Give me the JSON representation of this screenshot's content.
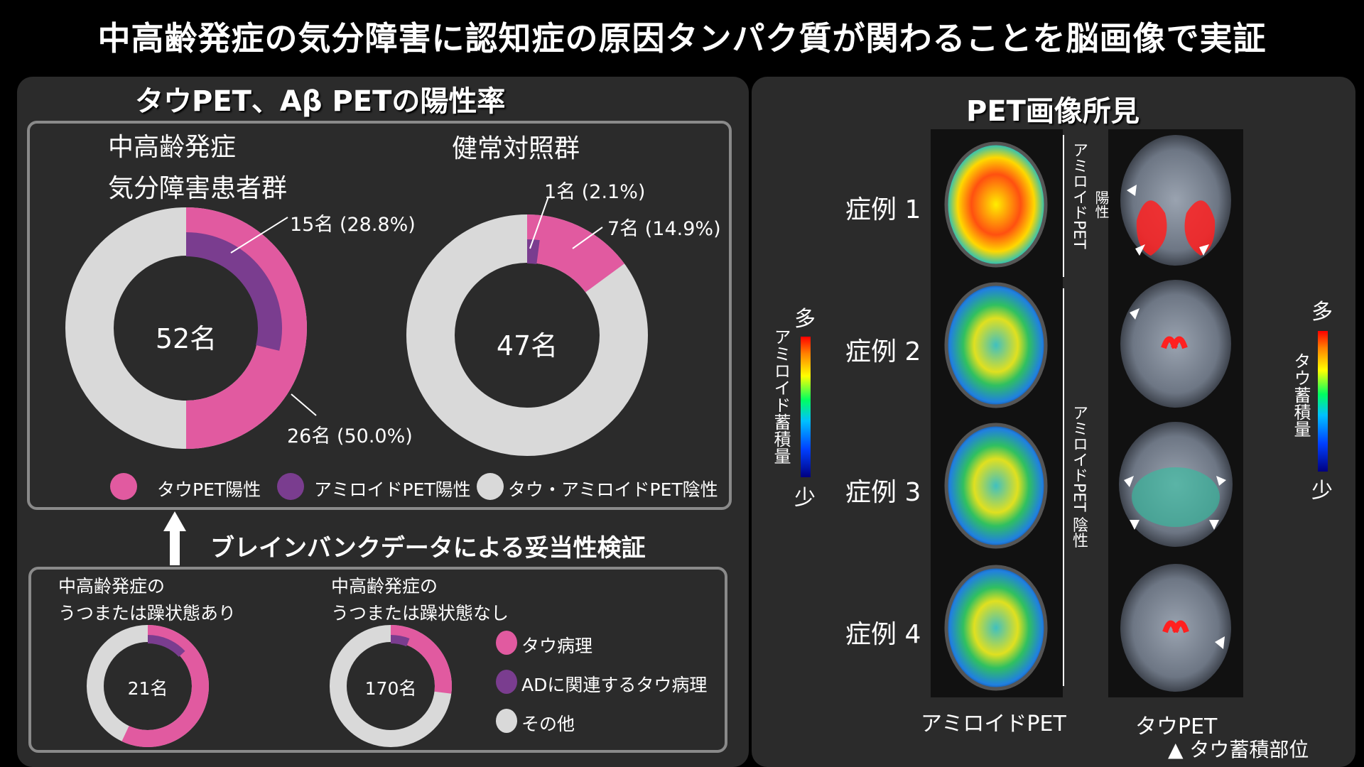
{
  "title": "中高齢発症の気分障害に認知症の原因タンパク質が関わることを脳画像で実証",
  "left_panel": {
    "title": "タウPET、Aβ PETの陽性率",
    "group1_label_line1": "中高齢発症",
    "group1_label_line2": "気分障害患者群",
    "group2_label": "健常対照群",
    "legend": [
      {
        "label": "タウPET陽性",
        "color": "#e15aa0"
      },
      {
        "label": "アミロイドPET陽性",
        "color": "#7a3d8f"
      },
      {
        "label": "タウ・アミロイドPET陰性",
        "color": "#d9d9d9"
      }
    ],
    "validation_label": "ブレインバンクデータによる妥当性検証",
    "bottom_group1_line1": "中高齢発症の",
    "bottom_group1_line2": "うつまたは躁状態あり",
    "bottom_group2_line1": "中高齢発症の",
    "bottom_group2_line2": "うつまたは躁状態なし",
    "bottom_legend": [
      {
        "label": "タウ病理",
        "color": "#e15aa0"
      },
      {
        "label": "ADに関連するタウ病理",
        "color": "#7a3d8f"
      },
      {
        "label": "その他",
        "color": "#d9d9d9"
      }
    ]
  },
  "right_panel": {
    "title": "PET画像所見",
    "cases": [
      "症例 1",
      "症例 2",
      "症例 3",
      "症例 4"
    ],
    "amyloid_positive_label": "アミロイドPET",
    "amyloid_positive_label2": "陽性",
    "amyloid_negative_label": "アミロイドPET 陰性",
    "amyloid_scale_label": "アミロイド蓄積量",
    "tau_scale_label": "タウ蓄積量",
    "scale_high": "多",
    "scale_low": "少",
    "col_amyloid": "アミロイドPET",
    "col_tau": "タウPET",
    "tau_site_note": "▲ タウ蓄積部位"
  },
  "chart_data": [
    {
      "type": "pie",
      "title": "中高齢発症 気分障害患者群",
      "center_label": "52名",
      "series": [
        {
          "name": "タウPET陽性",
          "values": [
            26
          ],
          "label": "26名 (50.0%)",
          "fraction": 0.5
        },
        {
          "name": "アミロイドPET陽性",
          "values": [
            15
          ],
          "label": "15名 (28.8%)",
          "fraction": 0.288
        }
      ],
      "total": 52
    },
    {
      "type": "pie",
      "title": "健常対照群",
      "center_label": "47名",
      "series": [
        {
          "name": "タウPET陽性",
          "values": [
            7
          ],
          "label": "7名 (14.9%)",
          "fraction": 0.149
        },
        {
          "name": "アミロイドPET陽性",
          "values": [
            1
          ],
          "label": "1名 (2.1%)",
          "fraction": 0.021
        }
      ],
      "total": 47
    },
    {
      "type": "pie",
      "title": "中高齢発症の うつまたは躁状態あり",
      "center_label": "21名",
      "series": [
        {
          "name": "タウ病理",
          "fraction": 0.57
        },
        {
          "name": "ADに関連するタウ病理",
          "fraction": 0.13
        }
      ]
    },
    {
      "type": "pie",
      "title": "中高齢発症の うつまたは躁状態なし",
      "center_label": "170名",
      "series": [
        {
          "name": "タウ病理",
          "fraction": 0.27
        },
        {
          "name": "ADに関連するタウ病理",
          "fraction": 0.06
        }
      ]
    }
  ]
}
